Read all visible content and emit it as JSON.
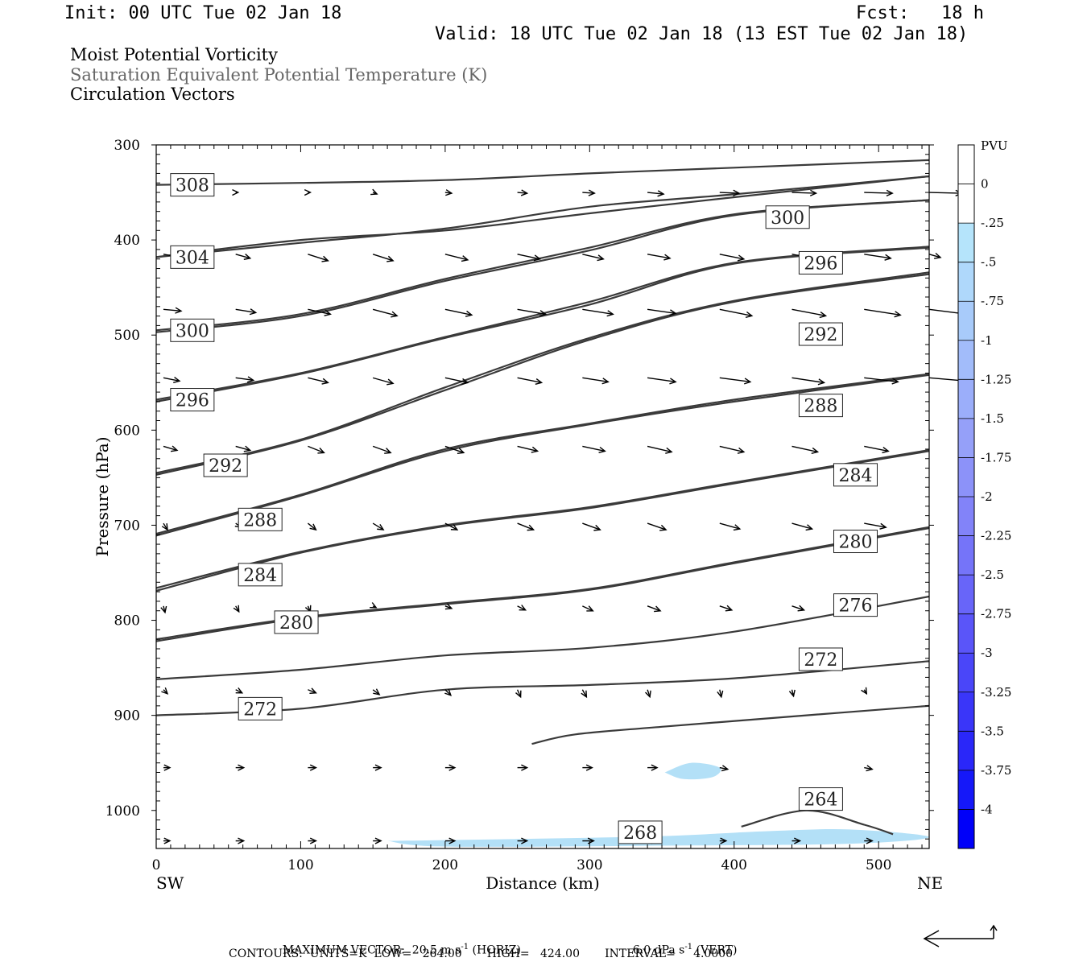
{
  "header": {
    "init": "Init: 00 UTC Tue 02 Jan 18",
    "fcst": "Fcst:   18 h",
    "valid": "Valid: 18 UTC Tue 02 Jan 18 (13 EST Tue 02 Jan 18)"
  },
  "fields": {
    "line1": "Moist Potential Vorticity",
    "line2": "Saturation Equivalent Potential Temperature (K)",
    "line3": "Circulation Vectors"
  },
  "colors": {
    "contour": "#3a3a3a",
    "pv_shade": "#b3e0f7",
    "vector": "#000000"
  },
  "colorbar": {
    "unit": "PVU",
    "levels": [
      "0",
      "-.25",
      "-.5",
      "-.75",
      "-1",
      "-1.25",
      "-1.5",
      "-1.75",
      "-2",
      "-2.25",
      "-2.5",
      "-2.75",
      "-3",
      "-3.25",
      "-3.5",
      "-3.75",
      "-4"
    ],
    "colors": [
      "#ffffff",
      "#ffffff",
      "#b5e4fb",
      "#afd8fb",
      "#a8cbfa",
      "#a2bcfa",
      "#9baefa",
      "#95a0f9",
      "#8c92f9",
      "#8283f9",
      "#7574f9",
      "#6865f9",
      "#5a55f9",
      "#4a46f9",
      "#3a36f9",
      "#2a27f9",
      "#1518f9",
      "#0000f9"
    ]
  },
  "footer": {
    "max_vector_label": "MAXIMUM VECTOR:",
    "horiz_value": "20.5 m s",
    "horiz_exp": "-1",
    "horiz_tag": " (HORIZ)",
    "vert_value": "6.0 dPa s",
    "vert_exp": "-1",
    "vert_tag": " (VERT)",
    "contours": "CONTOURS:  UNITS=K  LOW=   264.00       HIGH=   424.00       INTERVAL=     4.0000"
  },
  "chart_data": {
    "type": "cross-section contour",
    "xlabel": "Distance (km)",
    "ylabel": "Pressure (hPa)",
    "xlim": [
      0,
      535
    ],
    "ylim": [
      1040,
      300
    ],
    "x_ticks": [
      "0",
      "100",
      "200",
      "300",
      "400",
      "500"
    ],
    "y_ticks": [
      "300",
      "400",
      "500",
      "600",
      "700",
      "800",
      "900",
      "1000"
    ],
    "left_end_label": "SW",
    "right_end_label": "NE",
    "contours": [
      {
        "label": "308",
        "pts": [
          [
            0,
            342
          ],
          [
            100,
            340
          ],
          [
            200,
            337
          ],
          [
            300,
            330
          ],
          [
            400,
            324
          ],
          [
            535,
            316
          ]
        ],
        "label_at": [
          25,
          342
        ]
      },
      {
        "label": "300",
        "pts": [
          [
            0,
            418
          ],
          [
            100,
            400
          ],
          [
            200,
            390
          ],
          [
            300,
            372
          ],
          [
            400,
            355
          ],
          [
            535,
            333
          ]
        ],
        "label_at": [
          437,
          376
        ]
      },
      {
        "label": "304",
        "pts": [
          [
            0,
            418
          ],
          [
            100,
            403
          ],
          [
            200,
            388
          ],
          [
            300,
            365
          ],
          [
            400,
            352
          ],
          [
            535,
            333
          ]
        ],
        "label_at": [
          25,
          418
        ]
      },
      {
        "label": "296",
        "pts": [
          [
            0,
            497
          ],
          [
            100,
            480
          ],
          [
            200,
            443
          ],
          [
            300,
            411
          ],
          [
            400,
            374
          ],
          [
            535,
            358
          ]
        ],
        "label_at": [
          460,
          424
        ]
      },
      {
        "label": "300",
        "pts": [
          [
            0,
            495
          ],
          [
            100,
            478
          ],
          [
            200,
            441
          ],
          [
            300,
            408
          ],
          [
            400,
            373
          ],
          [
            535,
            358
          ]
        ],
        "label_at": [
          25,
          495
        ]
      },
      {
        "label": "292",
        "pts": [
          [
            0,
            570
          ],
          [
            100,
            541
          ],
          [
            200,
            503
          ],
          [
            300,
            468
          ],
          [
            400,
            425
          ],
          [
            535,
            408
          ]
        ],
        "label_at": [
          460,
          499
        ]
      },
      {
        "label": "296",
        "pts": [
          [
            0,
            568
          ],
          [
            100,
            540
          ],
          [
            200,
            502
          ],
          [
            300,
            465
          ],
          [
            400,
            424
          ],
          [
            535,
            407
          ]
        ],
        "label_at": [
          25,
          568
        ]
      },
      {
        "label": "288",
        "pts": [
          [
            0,
            647
          ],
          [
            100,
            611
          ],
          [
            200,
            558
          ],
          [
            300,
            505
          ],
          [
            400,
            465
          ],
          [
            535,
            436
          ]
        ],
        "label_at": [
          460,
          574
        ]
      },
      {
        "label": "292",
        "pts": [
          [
            0,
            645
          ],
          [
            100,
            610
          ],
          [
            200,
            555
          ],
          [
            300,
            503
          ],
          [
            400,
            464
          ],
          [
            535,
            434
          ]
        ],
        "label_at": [
          48,
          637
        ]
      },
      {
        "label": "284",
        "pts": [
          [
            0,
            711
          ],
          [
            100,
            669
          ],
          [
            200,
            622
          ],
          [
            300,
            594
          ],
          [
            400,
            570
          ],
          [
            535,
            542
          ]
        ],
        "label_at": [
          484,
          647
        ]
      },
      {
        "label": "288",
        "pts": [
          [
            0,
            709
          ],
          [
            100,
            668
          ],
          [
            200,
            620
          ],
          [
            300,
            593
          ],
          [
            400,
            568
          ],
          [
            535,
            541
          ]
        ],
        "label_at": [
          72,
          694
        ]
      },
      {
        "label": "280",
        "pts": [
          [
            0,
            769
          ],
          [
            100,
            729
          ],
          [
            200,
            701
          ],
          [
            300,
            682
          ],
          [
            400,
            656
          ],
          [
            535,
            622
          ]
        ],
        "label_at": [
          484,
          717
        ]
      },
      {
        "label": "284",
        "pts": [
          [
            0,
            766
          ],
          [
            100,
            728
          ],
          [
            200,
            700
          ],
          [
            300,
            681
          ],
          [
            400,
            655
          ],
          [
            535,
            621
          ]
        ],
        "label_at": [
          72,
          752
        ]
      },
      {
        "label": "276",
        "pts": [
          [
            0,
            822
          ],
          [
            100,
            798
          ],
          [
            200,
            783
          ],
          [
            300,
            768
          ],
          [
            400,
            740
          ],
          [
            535,
            703
          ]
        ],
        "label_at": [
          484,
          784
        ]
      },
      {
        "label": "280",
        "pts": [
          [
            0,
            820
          ],
          [
            100,
            797
          ],
          [
            200,
            782
          ],
          [
            300,
            767
          ],
          [
            400,
            739
          ],
          [
            535,
            702
          ]
        ],
        "label_at": [
          97,
          802
        ]
      },
      {
        "label": "272",
        "pts": [
          [
            0,
            862
          ],
          [
            100,
            852
          ],
          [
            200,
            837
          ],
          [
            300,
            829
          ],
          [
            400,
            812
          ],
          [
            535,
            775
          ]
        ],
        "label_at": [
          460,
          841
        ]
      },
      {
        "label": "272",
        "pts": [
          [
            0,
            900
          ],
          [
            100,
            893
          ],
          [
            200,
            873
          ],
          [
            300,
            868
          ],
          [
            400,
            861
          ],
          [
            535,
            843
          ]
        ],
        "label_at": [
          72,
          893
        ]
      },
      {
        "label": "268",
        "pts": [
          [
            260,
            930
          ],
          [
            290,
            920
          ],
          [
            350,
            912
          ],
          [
            450,
            900
          ],
          [
            535,
            890
          ]
        ],
        "label_at": [
          335,
          1023
        ]
      },
      {
        "label": "264",
        "pts": [
          [
            405,
            1017
          ],
          [
            450,
            1000
          ],
          [
            490,
            1015
          ],
          [
            510,
            1025
          ]
        ],
        "label_at": [
          460,
          988
        ]
      }
    ],
    "pv_regions": [
      {
        "label": "-.25 to -.5 PVU",
        "pts": [
          [
            160,
            1032
          ],
          [
            250,
            1030
          ],
          [
            350,
            1027
          ],
          [
            420,
            1022
          ],
          [
            480,
            1020
          ],
          [
            535,
            1028
          ],
          [
            480,
            1035
          ],
          [
            350,
            1037
          ],
          [
            200,
            1038
          ]
        ]
      },
      {
        "label": "-.25 to -.5 PVU",
        "pts": [
          [
            352,
            960
          ],
          [
            370,
            950
          ],
          [
            390,
            955
          ],
          [
            385,
            965
          ],
          [
            365,
            967
          ]
        ]
      }
    ],
    "vector_grid": {
      "x": [
        5,
        55,
        105,
        150,
        200,
        250,
        295,
        340,
        390,
        440,
        490,
        535
      ],
      "p": [
        350,
        415,
        473,
        545,
        617,
        698,
        785,
        873,
        955,
        1032
      ],
      "vectors_km_hpa": [
        [
          [
            0,
            0
          ],
          [
            3,
            0
          ],
          [
            3,
            0
          ],
          [
            5,
            -2
          ],
          [
            8,
            -1
          ],
          [
            12,
            -1
          ],
          [
            15,
            -1
          ],
          [
            20,
            -2
          ],
          [
            24,
            -1
          ],
          [
            30,
            -1
          ],
          [
            35,
            -1
          ],
          [
            40,
            -1
          ]
        ],
        [
          [
            22,
            -4
          ],
          [
            18,
            -5
          ],
          [
            25,
            -8
          ],
          [
            25,
            -8
          ],
          [
            28,
            -7
          ],
          [
            28,
            -6
          ],
          [
            26,
            -6
          ],
          [
            28,
            -5
          ],
          [
            30,
            -6
          ],
          [
            32,
            -6
          ],
          [
            33,
            -5
          ],
          [
            14,
            -4
          ]
        ],
        [
          [
            22,
            -2
          ],
          [
            25,
            -4
          ],
          [
            28,
            -6
          ],
          [
            30,
            -8
          ],
          [
            33,
            -7
          ],
          [
            35,
            -6
          ],
          [
            38,
            -6
          ],
          [
            35,
            -5
          ],
          [
            40,
            -8
          ],
          [
            42,
            -8
          ],
          [
            45,
            -7
          ],
          [
            47,
            -6
          ]
        ],
        [
          [
            20,
            -4
          ],
          [
            22,
            -3
          ],
          [
            25,
            -6
          ],
          [
            25,
            -7
          ],
          [
            28,
            -6
          ],
          [
            30,
            -6
          ],
          [
            32,
            -5
          ],
          [
            35,
            -5
          ],
          [
            38,
            -5
          ],
          [
            40,
            -6
          ],
          [
            42,
            -5
          ],
          [
            46,
            -4
          ]
        ],
        [
          [
            17,
            -5
          ],
          [
            18,
            -5
          ],
          [
            20,
            -8
          ],
          [
            22,
            -8
          ],
          [
            23,
            -8
          ],
          [
            25,
            -6
          ],
          [
            28,
            -6
          ],
          [
            30,
            -7
          ],
          [
            30,
            -7
          ],
          [
            32,
            -7
          ],
          [
            30,
            -6
          ],
          [
            0,
            0
          ]
        ],
        [
          [
            5,
            -8
          ],
          [
            7,
            -5
          ],
          [
            10,
            -8
          ],
          [
            13,
            -8
          ],
          [
            15,
            -8
          ],
          [
            20,
            -8
          ],
          [
            22,
            -8
          ],
          [
            23,
            -8
          ],
          [
            25,
            -7
          ],
          [
            25,
            -7
          ],
          [
            27,
            -5
          ],
          [
            0,
            0
          ]
        ],
        [
          [
            2,
            -8
          ],
          [
            4,
            -7
          ],
          [
            3,
            -7
          ],
          [
            4,
            -2
          ],
          [
            8,
            -3
          ],
          [
            10,
            -5
          ],
          [
            13,
            -6
          ],
          [
            16,
            -6
          ],
          [
            15,
            -5
          ],
          [
            15,
            -5
          ],
          [
            10,
            -5
          ],
          [
            0,
            0
          ]
        ],
        [
          [
            5,
            -5
          ],
          [
            8,
            -4
          ],
          [
            10,
            -4
          ],
          [
            8,
            -6
          ],
          [
            7,
            -7
          ],
          [
            4,
            -9
          ],
          [
            5,
            -9
          ],
          [
            3,
            -9
          ],
          [
            2,
            -9
          ],
          [
            2,
            -8
          ],
          [
            3,
            -5
          ],
          [
            0,
            0
          ]
        ],
        [
          [
            8,
            0
          ],
          [
            10,
            0
          ],
          [
            10,
            0
          ],
          [
            10,
            0
          ],
          [
            12,
            0
          ],
          [
            12,
            0
          ],
          [
            12,
            0
          ],
          [
            12,
            0
          ],
          [
            10,
            -2
          ],
          [
            0,
            0
          ],
          [
            10,
            -2
          ],
          [
            0,
            0
          ]
        ],
        [
          [
            8,
            0
          ],
          [
            10,
            0
          ],
          [
            10,
            0
          ],
          [
            10,
            0
          ],
          [
            12,
            0
          ],
          [
            12,
            0
          ],
          [
            14,
            0
          ],
          [
            12,
            0
          ],
          [
            8,
            0
          ],
          [
            10,
            0
          ],
          [
            10,
            0
          ],
          [
            0,
            0
          ]
        ]
      ]
    }
  }
}
